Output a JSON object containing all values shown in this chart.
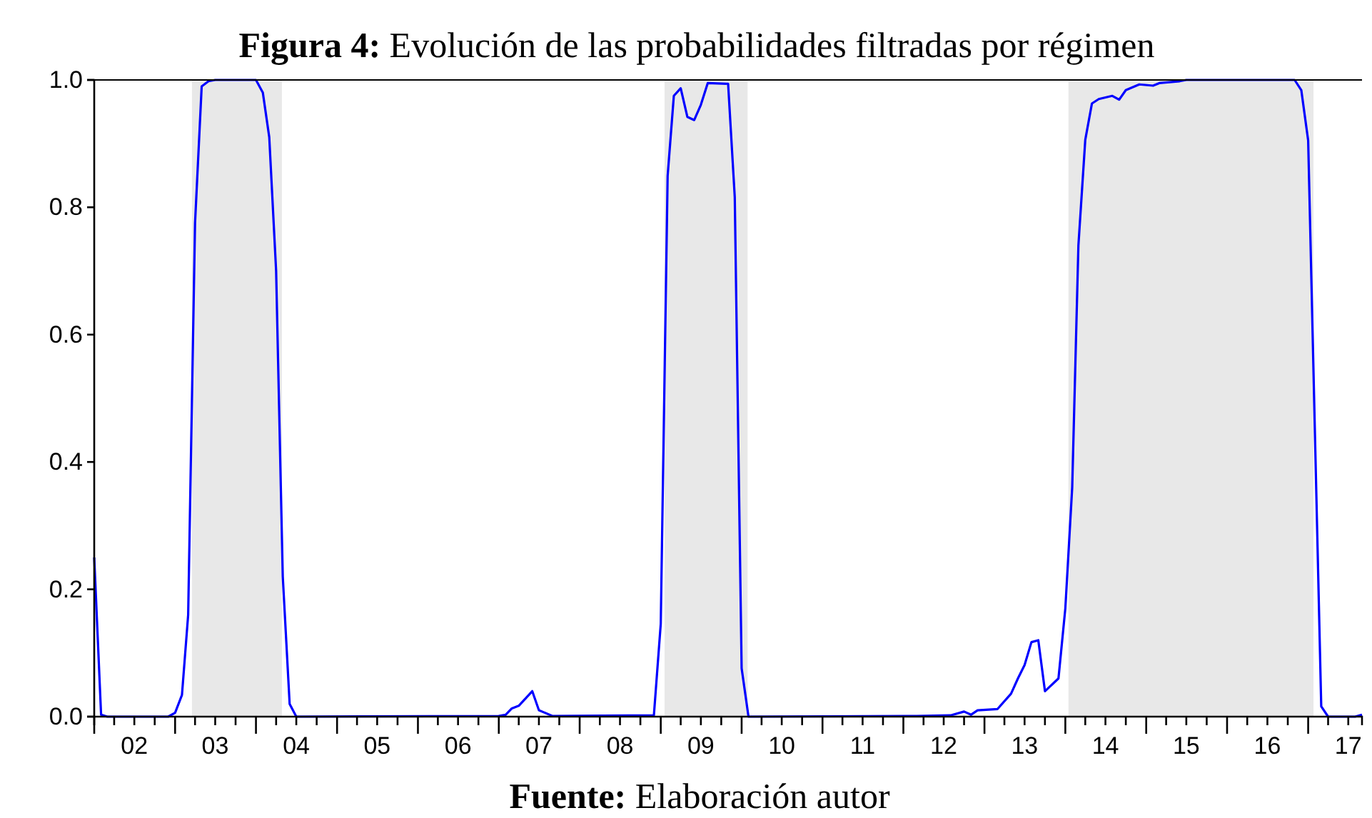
{
  "chart_data": {
    "type": "line",
    "title": "Figura 4: Evolución de las probabilidades filtradas por régimen",
    "annotations": [
      "Fuente: Elaboración autor"
    ],
    "series": [
      {
        "color": "#0000ff",
        "x": [
          "2002-01",
          "2002-02",
          "2002-03",
          "2002-12",
          "2003-01",
          "2003-02",
          "2003-03",
          "2003-04",
          "2003-05",
          "2003-06",
          "2003-07",
          "2004-01",
          "2004-02",
          "2004-03",
          "2004-04",
          "2004-05",
          "2004-06",
          "2004-07",
          "2007-01",
          "2007-02",
          "2007-03",
          "2007-04",
          "2007-06",
          "2007-07",
          "2007-09",
          "2008-12",
          "2009-01",
          "2009-02",
          "2009-03",
          "2009-04",
          "2009-05",
          "2009-06",
          "2009-07",
          "2009-08",
          "2009-11",
          "2009-12",
          "2010-01",
          "2010-02",
          "2012-03",
          "2012-08",
          "2012-10",
          "2012-11",
          "2012-12",
          "2013-03",
          "2013-05",
          "2013-06",
          "2013-07",
          "2013-08",
          "2013-09",
          "2013-10",
          "2013-12",
          "2014-01",
          "2014-02",
          "2014-03",
          "2014-04",
          "2014-05",
          "2014-06",
          "2014-08",
          "2014-09",
          "2014-10",
          "2014-12",
          "2015-02",
          "2015-03",
          "2015-06",
          "2015-07",
          "2016-11",
          "2016-12",
          "2017-01",
          "2017-03",
          "2017-04",
          "2017-08",
          "2017-09"
        ],
        "values": [
          0.25,
          0.003,
          0.0,
          0.0,
          0.006,
          0.034,
          0.16,
          0.775,
          0.99,
          0.998,
          1.0,
          1.0,
          0.98,
          0.91,
          0.7,
          0.22,
          0.02,
          0.0,
          0.001,
          0.003,
          0.013,
          0.017,
          0.04,
          0.01,
          0.001,
          0.002,
          0.146,
          0.849,
          0.975,
          0.987,
          0.942,
          0.937,
          0.961,
          0.995,
          0.994,
          0.816,
          0.076,
          0.0,
          0.001,
          0.002,
          0.008,
          0.003,
          0.01,
          0.012,
          0.036,
          0.06,
          0.081,
          0.117,
          0.12,
          0.04,
          0.06,
          0.17,
          0.36,
          0.74,
          0.906,
          0.963,
          0.97,
          0.975,
          0.969,
          0.984,
          0.993,
          0.991,
          0.995,
          0.998,
          1.0,
          1.0,
          0.984,
          0.905,
          0.016,
          0.0,
          0.0,
          0.003
        ]
      }
    ],
    "xlim": [
      "2002-01",
      "2017-09"
    ],
    "xticks": [
      {
        "value": "2002-01",
        "label": null
      },
      {
        "value": "2002-04",
        "label": null
      },
      {
        "value": "2002-07",
        "label": "02"
      },
      {
        "value": "2002-10",
        "label": null
      },
      {
        "value": "2003-01",
        "label": null
      },
      {
        "value": "2003-04",
        "label": null
      },
      {
        "value": "2003-07",
        "label": "03"
      },
      {
        "value": "2003-10",
        "label": null
      },
      {
        "value": "2004-01",
        "label": null
      },
      {
        "value": "2004-04",
        "label": null
      },
      {
        "value": "2004-07",
        "label": "04"
      },
      {
        "value": "2004-10",
        "label": null
      },
      {
        "value": "2005-01",
        "label": null
      },
      {
        "value": "2005-04",
        "label": null
      },
      {
        "value": "2005-07",
        "label": "05"
      },
      {
        "value": "2005-10",
        "label": null
      },
      {
        "value": "2006-01",
        "label": null
      },
      {
        "value": "2006-04",
        "label": null
      },
      {
        "value": "2006-07",
        "label": "06"
      },
      {
        "value": "2006-10",
        "label": null
      },
      {
        "value": "2007-01",
        "label": null
      },
      {
        "value": "2007-04",
        "label": null
      },
      {
        "value": "2007-07",
        "label": "07"
      },
      {
        "value": "2007-10",
        "label": null
      },
      {
        "value": "2008-01",
        "label": null
      },
      {
        "value": "2008-04",
        "label": null
      },
      {
        "value": "2008-07",
        "label": "08"
      },
      {
        "value": "2008-10",
        "label": null
      },
      {
        "value": "2009-01",
        "label": null
      },
      {
        "value": "2009-04",
        "label": null
      },
      {
        "value": "2009-07",
        "label": "09"
      },
      {
        "value": "2009-10",
        "label": null
      },
      {
        "value": "2010-01",
        "label": null
      },
      {
        "value": "2010-04",
        "label": null
      },
      {
        "value": "2010-07",
        "label": "10"
      },
      {
        "value": "2010-10",
        "label": null
      },
      {
        "value": "2011-01",
        "label": null
      },
      {
        "value": "2011-04",
        "label": null
      },
      {
        "value": "2011-07",
        "label": "11"
      },
      {
        "value": "2011-10",
        "label": null
      },
      {
        "value": "2012-01",
        "label": null
      },
      {
        "value": "2012-04",
        "label": null
      },
      {
        "value": "2012-07",
        "label": "12"
      },
      {
        "value": "2012-10",
        "label": null
      },
      {
        "value": "2013-01",
        "label": null
      },
      {
        "value": "2013-04",
        "label": null
      },
      {
        "value": "2013-07",
        "label": "13"
      },
      {
        "value": "2013-10",
        "label": null
      },
      {
        "value": "2014-01",
        "label": null
      },
      {
        "value": "2014-04",
        "label": null
      },
      {
        "value": "2014-07",
        "label": "14"
      },
      {
        "value": "2014-10",
        "label": null
      },
      {
        "value": "2015-01",
        "label": null
      },
      {
        "value": "2015-04",
        "label": null
      },
      {
        "value": "2015-07",
        "label": "15"
      },
      {
        "value": "2015-10",
        "label": null
      },
      {
        "value": "2016-01",
        "label": null
      },
      {
        "value": "2016-04",
        "label": null
      },
      {
        "value": "2016-07",
        "label": "16"
      },
      {
        "value": "2016-10",
        "label": null
      },
      {
        "value": "2017-01",
        "label": null
      },
      {
        "value": "2017-04",
        "label": null
      },
      {
        "value": "2017-07",
        "label": "17"
      }
    ],
    "ylim": [
      0,
      1
    ],
    "yticks": [
      {
        "value": 0,
        "label": "0.0"
      },
      {
        "value": 0.2,
        "label": "0.2"
      },
      {
        "value": 0.4,
        "label": "0.4"
      },
      {
        "value": 0.6,
        "label": "0.6"
      },
      {
        "value": 0.8,
        "label": "0.8"
      },
      {
        "value": 1,
        "label": "1.0"
      }
    ],
    "bands": [
      {
        "axis": "x",
        "from": "2003-03-18",
        "to": "2004-04-27",
        "color": "#e8e8e8"
      },
      {
        "axis": "x",
        "from": "2009-01-18",
        "to": "2010-01-28",
        "color": "#e8e8e8"
      },
      {
        "axis": "x",
        "from": "2014-01-15",
        "to": "2017-01-25",
        "color": "#e8e8e8"
      }
    ],
    "grid": false,
    "marker": "none",
    "line_style": "solid"
  }
}
